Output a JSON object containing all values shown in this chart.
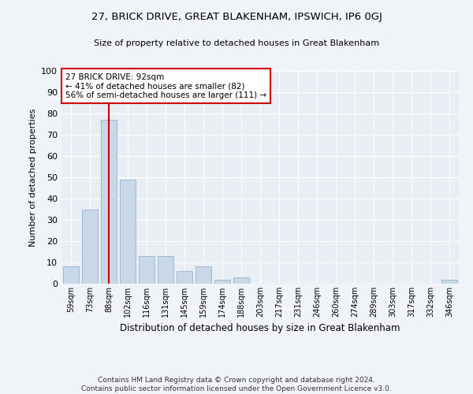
{
  "title": "27, BRICK DRIVE, GREAT BLAKENHAM, IPSWICH, IP6 0GJ",
  "subtitle": "Size of property relative to detached houses in Great Blakenham",
  "xlabel": "Distribution of detached houses by size in Great Blakenham",
  "ylabel": "Number of detached properties",
  "bar_labels": [
    "59sqm",
    "73sqm",
    "88sqm",
    "102sqm",
    "116sqm",
    "131sqm",
    "145sqm",
    "159sqm",
    "174sqm",
    "188sqm",
    "203sqm",
    "217sqm",
    "231sqm",
    "246sqm",
    "260sqm",
    "274sqm",
    "289sqm",
    "303sqm",
    "317sqm",
    "332sqm",
    "346sqm"
  ],
  "bar_values": [
    8,
    35,
    77,
    49,
    13,
    13,
    6,
    8,
    2,
    3,
    0,
    0,
    0,
    0,
    0,
    0,
    0,
    0,
    0,
    0,
    2
  ],
  "bar_color": "#c8d8e8",
  "bar_edgecolor": "#a0b8cc",
  "vline_x": 2,
  "vline_color": "#cc0000",
  "annotation_line1": "27 BRICK DRIVE: 92sqm",
  "annotation_line2": "← 41% of detached houses are smaller (82)",
  "annotation_line3": "56% of semi-detached houses are larger (111) →",
  "annotation_box_color": "#ffffff",
  "annotation_box_edgecolor": "#cc0000",
  "ylim": [
    0,
    100
  ],
  "yticks": [
    0,
    10,
    20,
    30,
    40,
    50,
    60,
    70,
    80,
    90,
    100
  ],
  "bg_color": "#e8eef4",
  "fig_bg_color": "#f0f4f8",
  "footer": "Contains HM Land Registry data © Crown copyright and database right 2024.\nContains public sector information licensed under the Open Government Licence v3.0."
}
